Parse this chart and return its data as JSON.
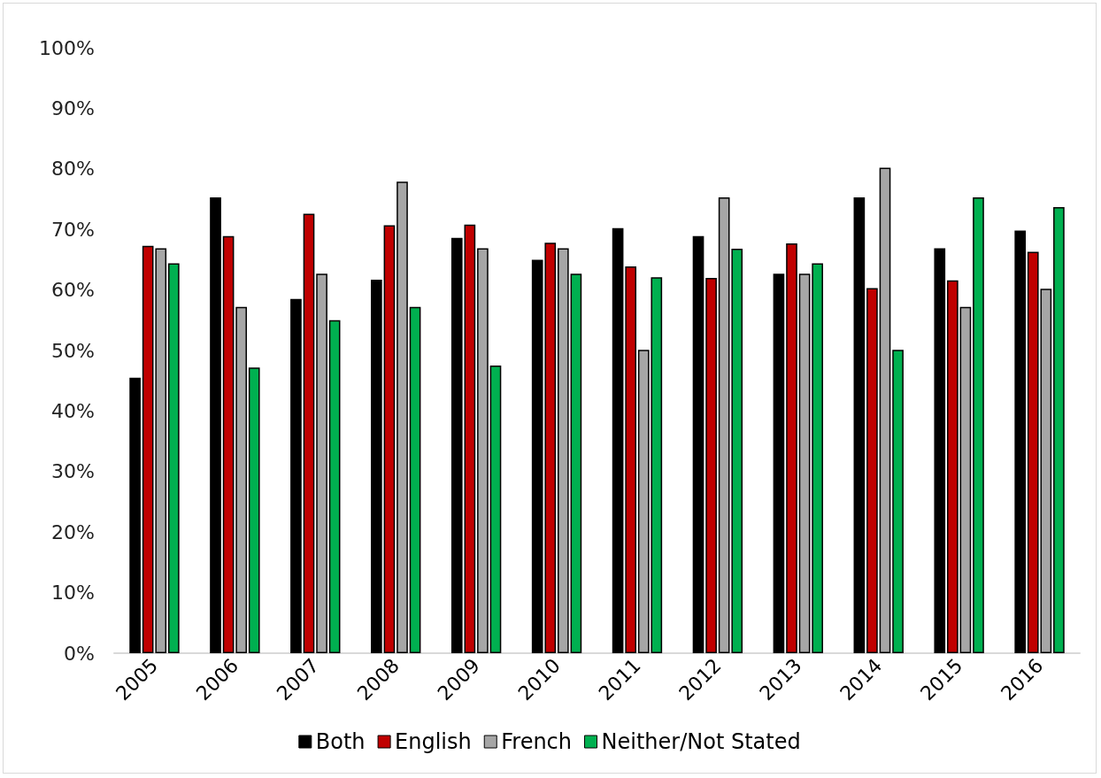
{
  "chart_data": {
    "type": "bar",
    "categories": [
      "2005",
      "2006",
      "2007",
      "2008",
      "2009",
      "2010",
      "2011",
      "2012",
      "2013",
      "2014",
      "2015",
      "2016"
    ],
    "series": [
      {
        "name": "Both",
        "color": "#000000",
        "values": [
          45.5,
          75.3,
          58.5,
          61.7,
          68.6,
          65.0,
          70.2,
          68.9,
          62.7,
          75.3,
          66.9,
          69.8
        ]
      },
      {
        "name": "English",
        "color": "#c00000",
        "values": [
          67.3,
          68.9,
          72.6,
          70.7,
          70.8,
          67.8,
          63.9,
          62.0,
          67.7,
          60.3,
          61.6,
          66.3
        ]
      },
      {
        "name": "French",
        "color": "#a6a6a6",
        "values": [
          66.9,
          57.2,
          62.7,
          77.9,
          66.9,
          66.9,
          50.1,
          75.3,
          62.7,
          80.2,
          57.2,
          60.2
        ]
      },
      {
        "name": "Neither/Not Stated",
        "color": "#00b050",
        "values": [
          64.4,
          47.2,
          55.0,
          57.2,
          47.5,
          62.7,
          62.1,
          66.8,
          64.4,
          50.1,
          75.3,
          73.7
        ]
      }
    ],
    "ylim": [
      0,
      100
    ],
    "yticks": [
      {
        "value": 0,
        "label": "0%"
      },
      {
        "value": 10,
        "label": "10%"
      },
      {
        "value": 20,
        "label": "20%"
      },
      {
        "value": 30,
        "label": "30%"
      },
      {
        "value": 40,
        "label": "40%"
      },
      {
        "value": 50,
        "label": "50%"
      },
      {
        "value": 60,
        "label": "60%"
      },
      {
        "value": 70,
        "label": "70%"
      },
      {
        "value": 80,
        "label": "80%"
      },
      {
        "value": 90,
        "label": "90%"
      },
      {
        "value": 100,
        "label": "100%"
      }
    ],
    "grid": false,
    "legend": "bottom"
  }
}
